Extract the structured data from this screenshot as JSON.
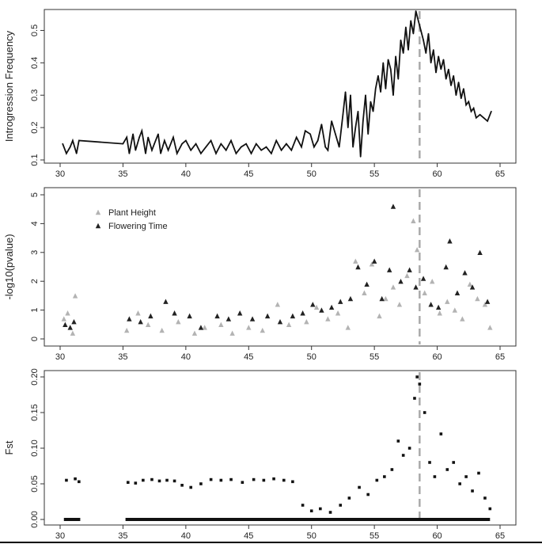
{
  "chart_data": [
    {
      "type": "line",
      "ylabel": "Introgression Frequency",
      "xlim": [
        30,
        65
      ],
      "ylim": [
        0.1,
        0.55
      ],
      "xticks": [
        "30",
        "35",
        "40",
        "45",
        "50",
        "55",
        "60",
        "65"
      ],
      "yticks": [
        "0.1",
        "0.2",
        "0.3",
        "0.4",
        "0.5"
      ],
      "vline": 58.6,
      "series": [
        {
          "name": "Introgression Frequency",
          "x": [
            30.2,
            30.5,
            30.8,
            31.0,
            31.3,
            31.5,
            35.0,
            35.3,
            35.5,
            35.8,
            36.0,
            36.3,
            36.5,
            36.8,
            37.0,
            37.3,
            37.5,
            37.8,
            38.0,
            38.3,
            38.6,
            39.0,
            39.3,
            39.7,
            40.0,
            40.4,
            40.8,
            41.2,
            41.6,
            42.0,
            42.4,
            42.8,
            43.2,
            43.6,
            44.0,
            44.4,
            44.8,
            45.2,
            45.6,
            46.0,
            46.4,
            46.8,
            47.2,
            47.6,
            48.0,
            48.4,
            48.8,
            49.2,
            49.5,
            49.9,
            50.2,
            50.5,
            50.8,
            51.1,
            51.3,
            51.6,
            51.9,
            52.2,
            52.5,
            52.7,
            52.9,
            53.1,
            53.3,
            53.5,
            53.7,
            53.9,
            54.1,
            54.3,
            54.5,
            54.7,
            54.9,
            55.1,
            55.3,
            55.5,
            55.7,
            55.9,
            56.1,
            56.3,
            56.5,
            56.7,
            56.9,
            57.1,
            57.3,
            57.5,
            57.7,
            57.9,
            58.1,
            58.3,
            58.5,
            58.7,
            58.9,
            59.1,
            59.3,
            59.5,
            59.7,
            59.9,
            60.1,
            60.3,
            60.5,
            60.7,
            60.9,
            61.1,
            61.3,
            61.5,
            61.7,
            61.9,
            62.1,
            62.3,
            62.5,
            62.7,
            62.9,
            63.1,
            63.4,
            63.7,
            64.0,
            64.3
          ],
          "values": [
            0.15,
            0.12,
            0.14,
            0.16,
            0.12,
            0.16,
            0.15,
            0.17,
            0.12,
            0.18,
            0.13,
            0.17,
            0.19,
            0.12,
            0.17,
            0.13,
            0.15,
            0.18,
            0.12,
            0.16,
            0.13,
            0.17,
            0.12,
            0.15,
            0.16,
            0.13,
            0.15,
            0.12,
            0.14,
            0.16,
            0.12,
            0.15,
            0.13,
            0.16,
            0.12,
            0.14,
            0.15,
            0.12,
            0.15,
            0.13,
            0.14,
            0.12,
            0.16,
            0.13,
            0.15,
            0.13,
            0.17,
            0.14,
            0.19,
            0.18,
            0.14,
            0.16,
            0.21,
            0.14,
            0.13,
            0.22,
            0.18,
            0.14,
            0.24,
            0.31,
            0.2,
            0.3,
            0.14,
            0.2,
            0.25,
            0.11,
            0.22,
            0.3,
            0.18,
            0.28,
            0.25,
            0.32,
            0.36,
            0.31,
            0.4,
            0.32,
            0.41,
            0.38,
            0.3,
            0.42,
            0.35,
            0.47,
            0.43,
            0.51,
            0.44,
            0.53,
            0.49,
            0.56,
            0.53,
            0.5,
            0.47,
            0.43,
            0.49,
            0.4,
            0.44,
            0.37,
            0.42,
            0.38,
            0.41,
            0.35,
            0.38,
            0.33,
            0.36,
            0.3,
            0.34,
            0.29,
            0.32,
            0.27,
            0.28,
            0.25,
            0.26,
            0.23,
            0.24,
            0.23,
            0.22,
            0.25
          ]
        }
      ]
    },
    {
      "type": "scatter",
      "ylabel": "-log10(pvalue)",
      "xlim": [
        30,
        65
      ],
      "ylim": [
        0,
        5
      ],
      "xticks": [
        "30",
        "35",
        "40",
        "45",
        "50",
        "55",
        "60",
        "65"
      ],
      "yticks": [
        "0",
        "1",
        "2",
        "3",
        "4",
        "5"
      ],
      "vline": 58.6,
      "legend": {
        "position": "top-left",
        "entries": [
          "Plant Height",
          "Flowering Time"
        ]
      },
      "series": [
        {
          "name": "Plant Height",
          "color": "#b3b3b3",
          "x": [
            30.3,
            30.6,
            31.0,
            31.2,
            35.3,
            36.2,
            37.0,
            38.1,
            39.4,
            40.7,
            41.5,
            42.8,
            43.7,
            45.0,
            46.1,
            47.3,
            48.2,
            49.6,
            50.4,
            51.3,
            52.1,
            52.9,
            53.5,
            54.2,
            54.8,
            55.4,
            55.9,
            56.5,
            57.0,
            57.6,
            58.1,
            58.4,
            59.0,
            59.6,
            60.2,
            60.8,
            61.4,
            62.0,
            62.6,
            63.2,
            63.8,
            64.2
          ],
          "values": [
            0.7,
            0.9,
            0.2,
            1.5,
            0.3,
            0.9,
            0.5,
            0.3,
            0.6,
            0.2,
            0.4,
            0.5,
            0.2,
            0.4,
            0.3,
            1.2,
            0.5,
            0.6,
            1.1,
            0.7,
            0.9,
            0.4,
            2.7,
            1.6,
            2.6,
            0.8,
            1.4,
            1.8,
            1.2,
            2.2,
            4.1,
            3.1,
            1.6,
            2.0,
            0.9,
            1.3,
            1.0,
            0.7,
            1.9,
            1.4,
            1.2,
            0.4
          ]
        },
        {
          "name": "Flowering Time",
          "color": "#222222",
          "x": [
            30.4,
            30.8,
            31.1,
            35.5,
            36.4,
            37.2,
            38.4,
            39.1,
            40.3,
            41.2,
            42.5,
            43.4,
            44.3,
            45.3,
            46.5,
            47.5,
            48.5,
            49.3,
            50.1,
            50.8,
            51.6,
            52.3,
            53.1,
            53.7,
            54.4,
            55.0,
            55.6,
            56.2,
            56.5,
            57.1,
            57.8,
            58.3,
            58.9,
            59.5,
            60.1,
            60.7,
            61.0,
            61.6,
            62.2,
            62.8,
            63.4,
            64.0
          ],
          "values": [
            0.5,
            0.4,
            0.6,
            0.7,
            0.6,
            0.8,
            1.3,
            0.9,
            0.8,
            0.4,
            0.8,
            0.7,
            0.9,
            0.7,
            0.8,
            0.6,
            0.8,
            0.9,
            1.2,
            1.0,
            1.1,
            1.3,
            1.4,
            2.5,
            1.9,
            2.7,
            1.4,
            2.4,
            4.6,
            2.0,
            2.4,
            1.8,
            2.1,
            1.2,
            1.1,
            2.5,
            3.4,
            1.6,
            2.3,
            1.8,
            3.0,
            1.3
          ]
        }
      ]
    },
    {
      "type": "scatter",
      "ylabel": "Fst",
      "xlim": [
        30,
        65
      ],
      "ylim": [
        0,
        0.2
      ],
      "xticks": [
        "30",
        "35",
        "40",
        "45",
        "50",
        "55",
        "60",
        "65"
      ],
      "yticks": [
        "0.00",
        "0.05",
        "0.10",
        "0.15",
        "0.20"
      ],
      "vline": 58.6,
      "series": [
        {
          "name": "Fst",
          "color": "#111111",
          "x": [
            30.5,
            31.2,
            31.5,
            35.4,
            36.0,
            36.6,
            37.3,
            37.9,
            38.5,
            39.1,
            39.7,
            40.4,
            41.2,
            42.0,
            42.8,
            43.6,
            44.5,
            45.4,
            46.2,
            47.0,
            47.8,
            48.5,
            49.3,
            50.0,
            50.7,
            51.5,
            52.3,
            53.0,
            53.8,
            54.5,
            55.2,
            55.8,
            56.4,
            56.9,
            57.3,
            57.8,
            58.2,
            58.4,
            58.6,
            59.0,
            59.4,
            59.8,
            60.3,
            60.8,
            61.3,
            61.8,
            62.3,
            62.8,
            63.3,
            63.8,
            64.2
          ],
          "values": [
            0.055,
            0.057,
            0.053,
            0.052,
            0.051,
            0.055,
            0.056,
            0.054,
            0.055,
            0.054,
            0.048,
            0.045,
            0.05,
            0.056,
            0.055,
            0.056,
            0.052,
            0.056,
            0.055,
            0.057,
            0.055,
            0.053,
            0.02,
            0.012,
            0.015,
            0.01,
            0.02,
            0.03,
            0.045,
            0.035,
            0.055,
            0.06,
            0.07,
            0.11,
            0.09,
            0.1,
            0.17,
            0.2,
            0.19,
            0.15,
            0.08,
            0.06,
            0.12,
            0.07,
            0.08,
            0.05,
            0.06,
            0.04,
            0.065,
            0.03,
            0.015
          ]
        }
      ]
    }
  ]
}
